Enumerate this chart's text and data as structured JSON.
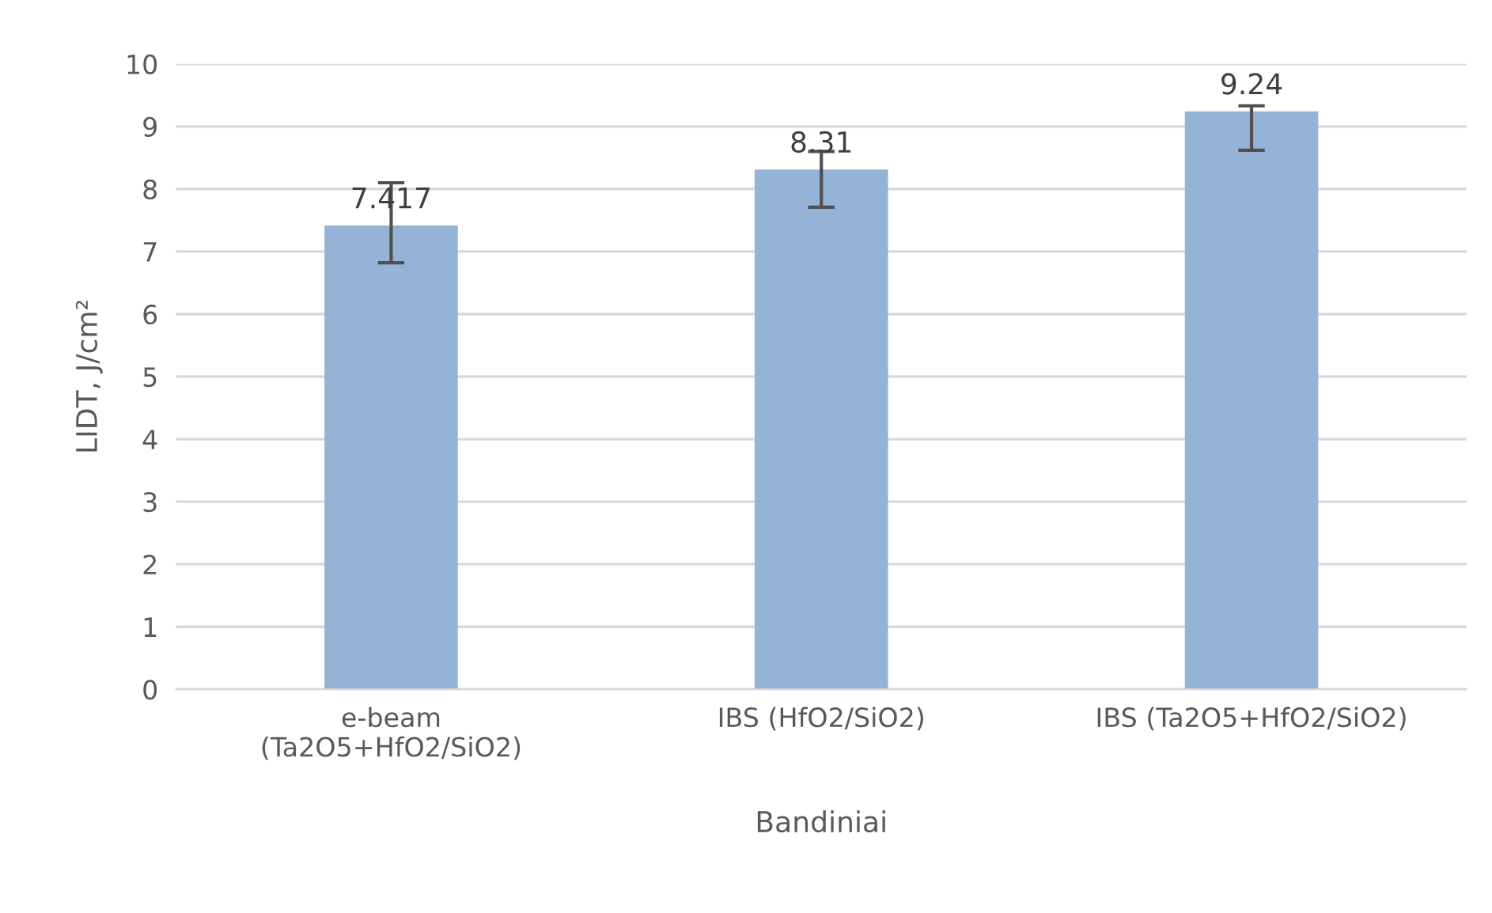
{
  "chart_data": {
    "type": "bar",
    "categories": [
      "e-beam\n(Ta2O5+HfO2/SiO2)",
      "IBS (HfO2/SiO2)",
      "IBS (Ta2O5+HfO2/SiO2)"
    ],
    "values": [
      7.417,
      8.31,
      9.24
    ],
    "errors": [
      [
        6.82,
        8.1
      ],
      [
        7.71,
        8.6
      ],
      [
        8.62,
        9.33
      ]
    ],
    "color": "#95b3d7",
    "data_labels": true,
    "xlabel": "Bandiniai",
    "ylabel": "LIDT, J/cm²",
    "ylim": [
      0,
      10
    ],
    "yticks": [
      0,
      1,
      2,
      3,
      4,
      5,
      6,
      7,
      8,
      9,
      10
    ],
    "grid": "y",
    "legend": false
  }
}
